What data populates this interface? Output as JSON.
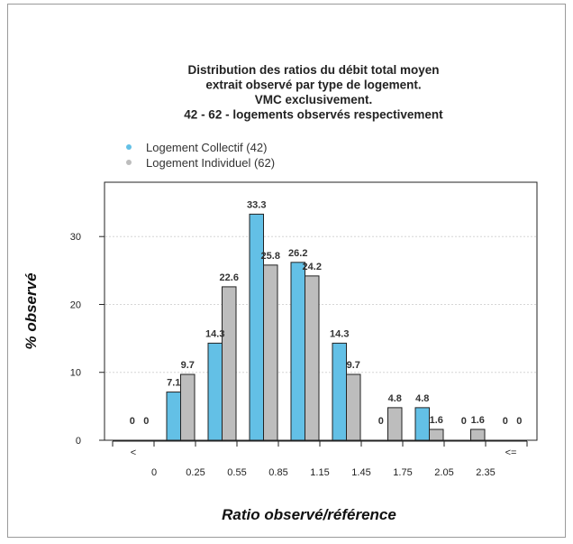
{
  "chart_data": {
    "type": "bar",
    "title": [
      "Distribution des ratios du débit total moyen",
      "extrait observé par type de logement.",
      "VMC exclusivement.",
      "42 - 62 - logements observés respectivement"
    ],
    "xlabel": "Ratio observé/référence",
    "ylabel": "% observé",
    "group_labels": [
      "<",
      "",
      "",
      "",
      "",
      "",
      "",
      "",
      "",
      "",
      "<="
    ],
    "tick_labels": [
      "0",
      "0.25",
      "0.55",
      "0.85",
      "1.15",
      "1.45",
      "1.75",
      "2.05",
      "2.35"
    ],
    "ylim": [
      0,
      38
    ],
    "yticks": [
      0,
      10,
      20,
      30
    ],
    "grid": "horizontal dotted",
    "legend_position": "top-left",
    "series": [
      {
        "name": "Logement Collectif (42)",
        "color": "#63c0e6",
        "values": [
          0,
          7.1,
          14.3,
          33.3,
          26.2,
          14.3,
          0,
          4.8,
          0,
          0
        ],
        "labels": [
          "0",
          "7.1",
          "14.3",
          "33.3",
          "26.2",
          "14.3",
          "0",
          "4.8",
          "0",
          "0"
        ]
      },
      {
        "name": "Logement Individuel (62)",
        "color": "#bdbdbd",
        "values": [
          0,
          9.7,
          22.6,
          25.8,
          24.2,
          9.7,
          4.8,
          1.6,
          1.6,
          0
        ],
        "labels": [
          "0",
          "9.7",
          "22.6",
          "25.8",
          "24.2",
          "9.7",
          "4.8",
          "1.6",
          "1.6",
          "0"
        ]
      }
    ]
  }
}
